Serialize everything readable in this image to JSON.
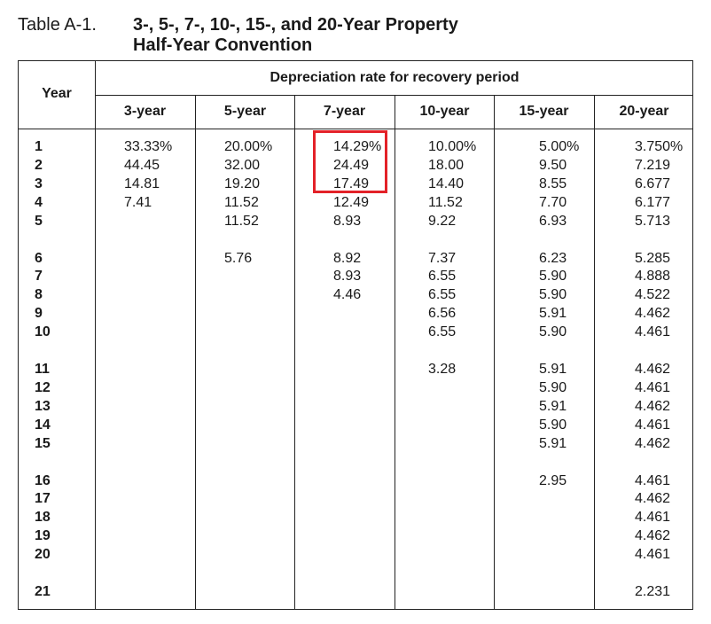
{
  "caption": {
    "label": "Table A-1.",
    "title_line1": "3-, 5-, 7-, 10-, 15-, and 20-Year Property",
    "title_line2": "Half-Year Convention"
  },
  "table": {
    "year_header": "Year",
    "group_header": "Depreciation rate for recovery period",
    "columns": [
      "3-year",
      "5-year",
      "7-year",
      "10-year",
      "15-year",
      "20-year"
    ],
    "rows": [
      {
        "year": "1",
        "values": [
          "33.33%",
          "20.00%",
          "14.29%",
          "10.00%",
          "5.00%",
          "3.750%"
        ]
      },
      {
        "year": "2",
        "values": [
          "44.45",
          "32.00",
          "24.49",
          "18.00",
          "9.50",
          "7.219"
        ]
      },
      {
        "year": "3",
        "values": [
          "14.81",
          "19.20",
          "17.49",
          "14.40",
          "8.55",
          "6.677"
        ]
      },
      {
        "year": "4",
        "values": [
          "7.41",
          "11.52",
          "12.49",
          "11.52",
          "7.70",
          "6.177"
        ]
      },
      {
        "year": "5",
        "values": [
          "",
          "11.52",
          "8.93",
          "9.22",
          "6.93",
          "5.713"
        ]
      },
      {
        "year": "6",
        "values": [
          "",
          "5.76",
          "8.92",
          "7.37",
          "6.23",
          "5.285"
        ]
      },
      {
        "year": "7",
        "values": [
          "",
          "",
          "8.93",
          "6.55",
          "5.90",
          "4.888"
        ]
      },
      {
        "year": "8",
        "values": [
          "",
          "",
          "4.46",
          "6.55",
          "5.90",
          "4.522"
        ]
      },
      {
        "year": "9",
        "values": [
          "",
          "",
          "",
          "6.56",
          "5.91",
          "4.462"
        ]
      },
      {
        "year": "10",
        "values": [
          "",
          "",
          "",
          "6.55",
          "5.90",
          "4.461"
        ]
      },
      {
        "year": "11",
        "values": [
          "",
          "",
          "",
          "3.28",
          "5.91",
          "4.462"
        ]
      },
      {
        "year": "12",
        "values": [
          "",
          "",
          "",
          "",
          "5.90",
          "4.461"
        ]
      },
      {
        "year": "13",
        "values": [
          "",
          "",
          "",
          "",
          "5.91",
          "4.462"
        ]
      },
      {
        "year": "14",
        "values": [
          "",
          "",
          "",
          "",
          "5.90",
          "4.461"
        ]
      },
      {
        "year": "15",
        "values": [
          "",
          "",
          "",
          "",
          "5.91",
          "4.462"
        ]
      },
      {
        "year": "16",
        "values": [
          "",
          "",
          "",
          "",
          "2.95",
          "4.461"
        ]
      },
      {
        "year": "17",
        "values": [
          "",
          "",
          "",
          "",
          "",
          "4.462"
        ]
      },
      {
        "year": "18",
        "values": [
          "",
          "",
          "",
          "",
          "",
          "4.461"
        ]
      },
      {
        "year": "19",
        "values": [
          "",
          "",
          "",
          "",
          "",
          "4.462"
        ]
      },
      {
        "year": "20",
        "values": [
          "",
          "",
          "",
          "",
          "",
          "4.461"
        ]
      },
      {
        "year": "21",
        "values": [
          "",
          "",
          "",
          "",
          "",
          "2.231"
        ]
      }
    ]
  },
  "highlight": {
    "column": "7-year",
    "rows": [
      "1",
      "2",
      "3"
    ],
    "color": "#e32128"
  }
}
